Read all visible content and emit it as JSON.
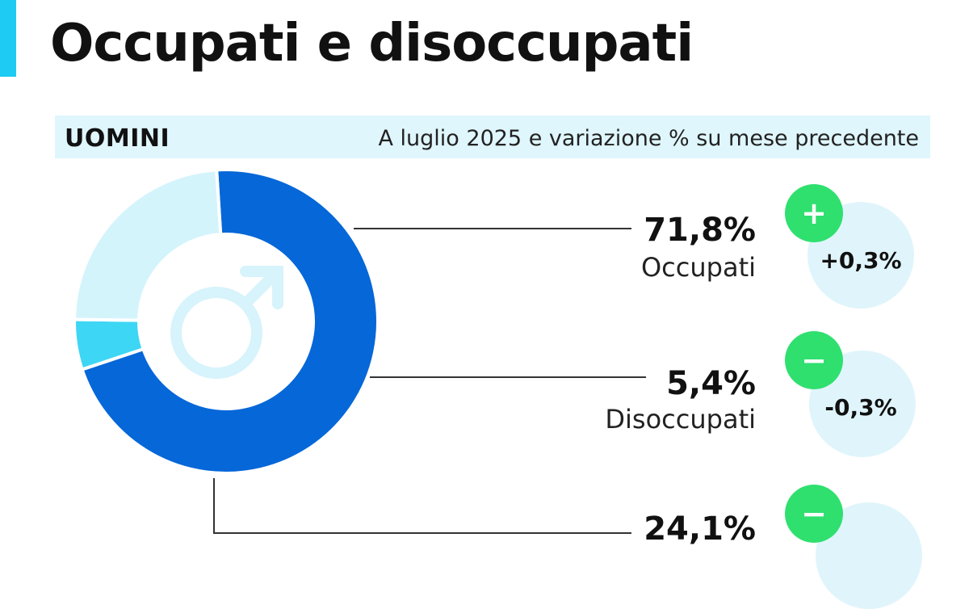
{
  "header": {
    "title": "Occupati e disoccupati"
  },
  "subtitle": {
    "group": "UOMINI",
    "description": "A luglio 2025 e variazione % su mese precedente"
  },
  "icon": "male-symbol-icon",
  "colors": {
    "accent": "#1ecbf2",
    "occupied": "#0567d8",
    "unemployed": "#3dd6f5",
    "inactive": "#d4f4fc",
    "band": "#dff6fd",
    "badge": "#2fe06f",
    "bubble": "#e0f5fb",
    "icon": "#d7f3fb"
  },
  "chart_data": {
    "type": "pie",
    "series": [
      {
        "name": "Occupati",
        "value": 71.8,
        "value_label": "71,8%",
        "change": 0.3,
        "change_label": "+0,3%",
        "sign": "+"
      },
      {
        "name": "Disoccupati",
        "value": 5.4,
        "value_label": "5,4%",
        "change": -0.3,
        "change_label": "-0,3%",
        "sign": "−"
      },
      {
        "name": "",
        "value": 24.1,
        "value_label": "24,1%",
        "change": null,
        "change_label": "",
        "sign": "−"
      }
    ]
  }
}
